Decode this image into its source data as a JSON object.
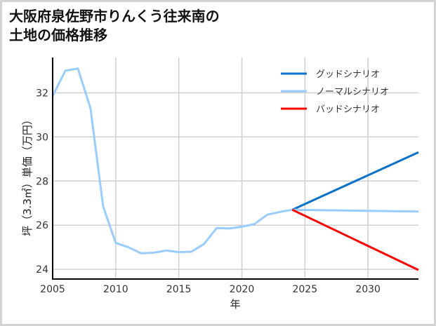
{
  "title": "大阪府泉佐野市りんくう往来南の\n土地の価格推移",
  "chart_data": {
    "type": "line",
    "title": "大阪府泉佐野市りんくう往来南の土地の価格推移",
    "xlabel": "年",
    "ylabel": "坪（3.3㎡）単価（万円）",
    "xlim": [
      2005,
      2034
    ],
    "ylim": [
      23.56,
      33.6
    ],
    "xticks": [
      2005,
      2010,
      2015,
      2020,
      2025,
      2030
    ],
    "yticks": [
      24,
      26,
      28,
      30,
      32
    ],
    "grid": true,
    "legend_position": "upper right",
    "series": [
      {
        "name": "ノーマルシナリオ (historical)",
        "color": "#99ccff",
        "x": [
          2005,
          2006,
          2007,
          2008,
          2009,
          2010,
          2011,
          2012,
          2013,
          2014,
          2015,
          2016,
          2017,
          2018,
          2019,
          2020,
          2021,
          2022,
          2023,
          2024
        ],
        "values": [
          31.85,
          33.0,
          33.1,
          31.3,
          26.85,
          25.2,
          25.0,
          24.73,
          24.75,
          24.85,
          24.78,
          24.8,
          25.15,
          25.87,
          25.85,
          25.93,
          26.05,
          26.47,
          26.6,
          26.7
        ]
      },
      {
        "name": "グッドシナリオ",
        "color": "#0a72c8",
        "x": [
          2024,
          2034
        ],
        "values": [
          26.7,
          29.3
        ]
      },
      {
        "name": "ノーマルシナリオ",
        "color": "#99ccff",
        "x": [
          2024,
          2034
        ],
        "values": [
          26.7,
          26.62
        ]
      },
      {
        "name": "バッドシナリオ",
        "color": "#ff0000",
        "x": [
          2024,
          2034
        ],
        "values": [
          26.7,
          23.97
        ]
      }
    ],
    "legend": [
      {
        "label": "グッドシナリオ",
        "color": "#0a72c8"
      },
      {
        "label": "ノーマルシナリオ",
        "color": "#99ccff"
      },
      {
        "label": "バッドシナリオ",
        "color": "#ff0000"
      }
    ]
  },
  "colors": {
    "grid": "#d0d0d0",
    "axis": "#000000",
    "border": "#d3d3d3"
  }
}
